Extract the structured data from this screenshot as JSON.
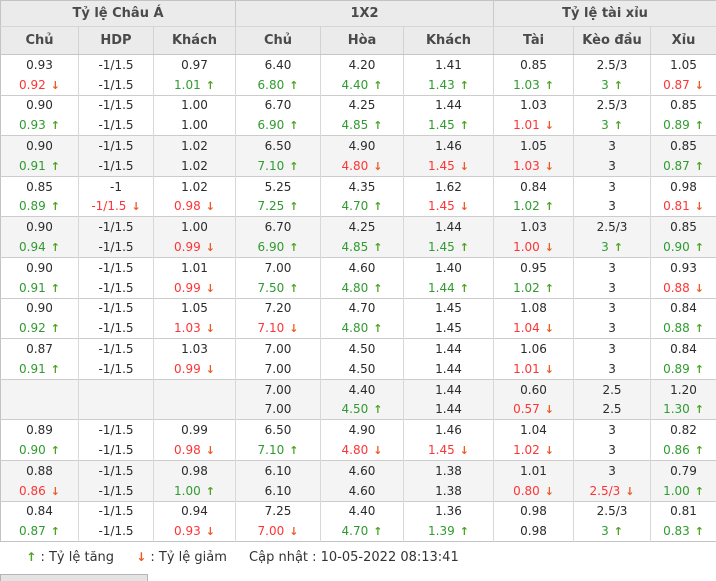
{
  "header": {
    "groups": [
      {
        "label": "Tỷ lệ Châu Á"
      },
      {
        "label": "1X2"
      },
      {
        "label": "Tỷ lệ tài xỉu"
      }
    ],
    "columns": [
      "Chủ",
      "HDP",
      "Khách",
      "Chủ",
      "Hòa",
      "Khách",
      "Tài",
      "Kèo đầu",
      "Xỉu"
    ]
  },
  "rows": [
    {
      "shaded": false,
      "cells": [
        [
          "0.93",
          ""
        ],
        [
          "-1/1.5",
          ""
        ],
        [
          "0.97",
          ""
        ],
        [
          "6.40",
          ""
        ],
        [
          "4.20",
          ""
        ],
        [
          "1.41",
          ""
        ],
        [
          "0.85",
          ""
        ],
        [
          "2.5/3",
          ""
        ],
        [
          "1.05",
          ""
        ]
      ]
    },
    {
      "shaded": false,
      "cells": [
        [
          "0.92",
          "d"
        ],
        [
          "-1/1.5",
          ""
        ],
        [
          "1.01",
          "u"
        ],
        [
          "6.80",
          "u"
        ],
        [
          "4.40",
          "u"
        ],
        [
          "1.43",
          "u"
        ],
        [
          "1.03",
          "u"
        ],
        [
          "3",
          "u"
        ],
        [
          "0.87",
          "d"
        ]
      ]
    },
    {
      "shaded": false,
      "cells": [
        [
          "0.90",
          ""
        ],
        [
          "-1/1.5",
          ""
        ],
        [
          "1.00",
          ""
        ],
        [
          "6.70",
          ""
        ],
        [
          "4.25",
          ""
        ],
        [
          "1.44",
          ""
        ],
        [
          "1.03",
          ""
        ],
        [
          "2.5/3",
          ""
        ],
        [
          "0.85",
          ""
        ]
      ]
    },
    {
      "shaded": false,
      "cells": [
        [
          "0.93",
          "u"
        ],
        [
          "-1/1.5",
          ""
        ],
        [
          "1.00",
          ""
        ],
        [
          "6.90",
          "u"
        ],
        [
          "4.85",
          "u"
        ],
        [
          "1.45",
          "u"
        ],
        [
          "1.01",
          "d"
        ],
        [
          "3",
          "u"
        ],
        [
          "0.89",
          "u"
        ]
      ]
    },
    {
      "shaded": true,
      "cells": [
        [
          "0.90",
          ""
        ],
        [
          "-1/1.5",
          ""
        ],
        [
          "1.02",
          ""
        ],
        [
          "6.50",
          ""
        ],
        [
          "4.90",
          ""
        ],
        [
          "1.46",
          ""
        ],
        [
          "1.05",
          ""
        ],
        [
          "3",
          ""
        ],
        [
          "0.85",
          ""
        ]
      ]
    },
    {
      "shaded": true,
      "cells": [
        [
          "0.91",
          "u"
        ],
        [
          "-1/1.5",
          ""
        ],
        [
          "1.02",
          ""
        ],
        [
          "7.10",
          "u"
        ],
        [
          "4.80",
          "d"
        ],
        [
          "1.45",
          "d"
        ],
        [
          "1.03",
          "d"
        ],
        [
          "3",
          ""
        ],
        [
          "0.87",
          "u"
        ]
      ]
    },
    {
      "shaded": false,
      "cells": [
        [
          "0.85",
          ""
        ],
        [
          "-1",
          ""
        ],
        [
          "1.02",
          ""
        ],
        [
          "5.25",
          ""
        ],
        [
          "4.35",
          ""
        ],
        [
          "1.62",
          ""
        ],
        [
          "0.84",
          ""
        ],
        [
          "3",
          ""
        ],
        [
          "0.98",
          ""
        ]
      ]
    },
    {
      "shaded": false,
      "cells": [
        [
          "0.89",
          "u"
        ],
        [
          "-1/1.5",
          "d"
        ],
        [
          "0.98",
          "d"
        ],
        [
          "7.25",
          "u"
        ],
        [
          "4.70",
          "u"
        ],
        [
          "1.45",
          "d"
        ],
        [
          "1.02",
          "u"
        ],
        [
          "3",
          ""
        ],
        [
          "0.81",
          "d"
        ]
      ]
    },
    {
      "shaded": true,
      "cells": [
        [
          "0.90",
          ""
        ],
        [
          "-1/1.5",
          ""
        ],
        [
          "1.00",
          ""
        ],
        [
          "6.70",
          ""
        ],
        [
          "4.25",
          ""
        ],
        [
          "1.44",
          ""
        ],
        [
          "1.03",
          ""
        ],
        [
          "2.5/3",
          ""
        ],
        [
          "0.85",
          ""
        ]
      ]
    },
    {
      "shaded": true,
      "cells": [
        [
          "0.94",
          "u"
        ],
        [
          "-1/1.5",
          ""
        ],
        [
          "0.99",
          "d"
        ],
        [
          "6.90",
          "u"
        ],
        [
          "4.85",
          "u"
        ],
        [
          "1.45",
          "u"
        ],
        [
          "1.00",
          "d"
        ],
        [
          "3",
          "u"
        ],
        [
          "0.90",
          "u"
        ]
      ]
    },
    {
      "shaded": false,
      "cells": [
        [
          "0.90",
          ""
        ],
        [
          "-1/1.5",
          ""
        ],
        [
          "1.01",
          ""
        ],
        [
          "7.00",
          ""
        ],
        [
          "4.60",
          ""
        ],
        [
          "1.40",
          ""
        ],
        [
          "0.95",
          ""
        ],
        [
          "3",
          ""
        ],
        [
          "0.93",
          ""
        ]
      ]
    },
    {
      "shaded": false,
      "cells": [
        [
          "0.91",
          "u"
        ],
        [
          "-1/1.5",
          ""
        ],
        [
          "0.99",
          "d"
        ],
        [
          "7.50",
          "u"
        ],
        [
          "4.80",
          "u"
        ],
        [
          "1.44",
          "u"
        ],
        [
          "1.02",
          "u"
        ],
        [
          "3",
          ""
        ],
        [
          "0.88",
          "d"
        ]
      ]
    },
    {
      "shaded": false,
      "cells": [
        [
          "0.90",
          ""
        ],
        [
          "-1/1.5",
          ""
        ],
        [
          "1.05",
          ""
        ],
        [
          "7.20",
          ""
        ],
        [
          "4.70",
          ""
        ],
        [
          "1.45",
          ""
        ],
        [
          "1.08",
          ""
        ],
        [
          "3",
          ""
        ],
        [
          "0.84",
          ""
        ]
      ]
    },
    {
      "shaded": false,
      "cells": [
        [
          "0.92",
          "u"
        ],
        [
          "-1/1.5",
          ""
        ],
        [
          "1.03",
          "d"
        ],
        [
          "7.10",
          "d"
        ],
        [
          "4.80",
          "u"
        ],
        [
          "1.45",
          ""
        ],
        [
          "1.04",
          "d"
        ],
        [
          "3",
          ""
        ],
        [
          "0.88",
          "u"
        ]
      ]
    },
    {
      "shaded": false,
      "cells": [
        [
          "0.87",
          ""
        ],
        [
          "-1/1.5",
          ""
        ],
        [
          "1.03",
          ""
        ],
        [
          "7.00",
          ""
        ],
        [
          "4.50",
          ""
        ],
        [
          "1.44",
          ""
        ],
        [
          "1.06",
          ""
        ],
        [
          "3",
          ""
        ],
        [
          "0.84",
          ""
        ]
      ]
    },
    {
      "shaded": false,
      "cells": [
        [
          "0.91",
          "u"
        ],
        [
          "-1/1.5",
          ""
        ],
        [
          "0.99",
          "d"
        ],
        [
          "7.00",
          ""
        ],
        [
          "4.50",
          ""
        ],
        [
          "1.44",
          ""
        ],
        [
          "1.01",
          "d"
        ],
        [
          "3",
          ""
        ],
        [
          "0.89",
          "u"
        ]
      ]
    },
    {
      "shaded": true,
      "cells": [
        [
          "",
          ""
        ],
        [
          "",
          ""
        ],
        [
          "",
          ""
        ],
        [
          "7.00",
          ""
        ],
        [
          "4.40",
          ""
        ],
        [
          "1.44",
          ""
        ],
        [
          "0.60",
          ""
        ],
        [
          "2.5",
          ""
        ],
        [
          "1.20",
          ""
        ]
      ]
    },
    {
      "shaded": true,
      "cells": [
        [
          "",
          ""
        ],
        [
          "",
          ""
        ],
        [
          "",
          ""
        ],
        [
          "7.00",
          ""
        ],
        [
          "4.50",
          "u"
        ],
        [
          "1.44",
          ""
        ],
        [
          "0.57",
          "d"
        ],
        [
          "2.5",
          ""
        ],
        [
          "1.30",
          "u"
        ]
      ]
    },
    {
      "shaded": false,
      "cells": [
        [
          "0.89",
          ""
        ],
        [
          "-1/1.5",
          ""
        ],
        [
          "0.99",
          ""
        ],
        [
          "6.50",
          ""
        ],
        [
          "4.90",
          ""
        ],
        [
          "1.46",
          ""
        ],
        [
          "1.04",
          ""
        ],
        [
          "3",
          ""
        ],
        [
          "0.82",
          ""
        ]
      ]
    },
    {
      "shaded": false,
      "cells": [
        [
          "0.90",
          "u"
        ],
        [
          "-1/1.5",
          ""
        ],
        [
          "0.98",
          "d"
        ],
        [
          "7.10",
          "u"
        ],
        [
          "4.80",
          "d"
        ],
        [
          "1.45",
          "d"
        ],
        [
          "1.02",
          "d"
        ],
        [
          "3",
          ""
        ],
        [
          "0.86",
          "u"
        ]
      ]
    },
    {
      "shaded": true,
      "cells": [
        [
          "0.88",
          ""
        ],
        [
          "-1/1.5",
          ""
        ],
        [
          "0.98",
          ""
        ],
        [
          "6.10",
          ""
        ],
        [
          "4.60",
          ""
        ],
        [
          "1.38",
          ""
        ],
        [
          "1.01",
          ""
        ],
        [
          "3",
          ""
        ],
        [
          "0.79",
          ""
        ]
      ]
    },
    {
      "shaded": true,
      "cells": [
        [
          "0.86",
          "d"
        ],
        [
          "-1/1.5",
          ""
        ],
        [
          "1.00",
          "u"
        ],
        [
          "6.10",
          ""
        ],
        [
          "4.60",
          ""
        ],
        [
          "1.38",
          ""
        ],
        [
          "0.80",
          "d"
        ],
        [
          "2.5/3",
          "d"
        ],
        [
          "1.00",
          "u"
        ]
      ]
    },
    {
      "shaded": false,
      "cells": [
        [
          "0.84",
          ""
        ],
        [
          "-1/1.5",
          ""
        ],
        [
          "0.94",
          ""
        ],
        [
          "7.25",
          ""
        ],
        [
          "4.40",
          ""
        ],
        [
          "1.36",
          ""
        ],
        [
          "0.98",
          ""
        ],
        [
          "2.5/3",
          ""
        ],
        [
          "0.81",
          ""
        ]
      ]
    },
    {
      "shaded": false,
      "cells": [
        [
          "0.87",
          "u"
        ],
        [
          "-1/1.5",
          ""
        ],
        [
          "0.93",
          "d"
        ],
        [
          "7.00",
          "d"
        ],
        [
          "4.70",
          "u"
        ],
        [
          "1.39",
          "u"
        ],
        [
          "0.98",
          ""
        ],
        [
          "3",
          "u"
        ],
        [
          "0.83",
          "u"
        ]
      ]
    }
  ],
  "icons": {
    "up": "↑",
    "down": "↓"
  },
  "footer": {
    "up_label": ": Tỷ lệ tăng",
    "down_label": ": Tỷ lệ giảm",
    "updated_label": "Cập nhật : 10-05-2022 08:13:41"
  },
  "colors": {
    "up_green": "#2f9b2f",
    "down_red": "#fe3434",
    "up_arrow_green": "#4da41f",
    "down_arrow_orange": "#ee5a24",
    "header_bg": "#ebebeb",
    "stripe_bg": "#f4f4f4",
    "border": "#cccccc",
    "text": "#2b2b2b"
  }
}
